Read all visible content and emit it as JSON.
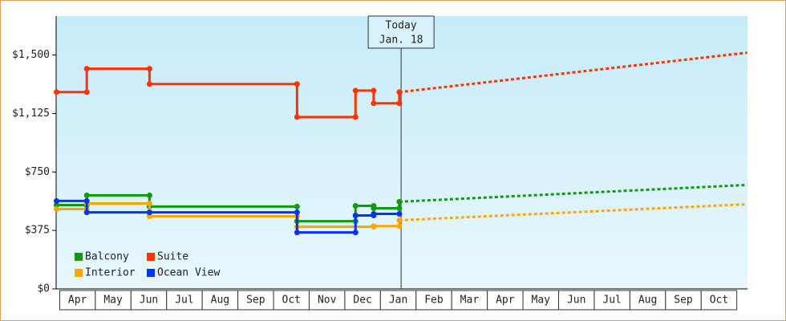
{
  "chart_data": {
    "type": "line",
    "xlim": [
      -0.1,
      19.3
    ],
    "ylim": [
      0,
      1750
    ],
    "yticks": [
      {
        "value": 0,
        "label": "$0"
      },
      {
        "value": 375,
        "label": "$375"
      },
      {
        "value": 750,
        "label": "$750"
      },
      {
        "value": 1125,
        "label": "$1,125"
      },
      {
        "value": 1500,
        "label": "$1,500"
      }
    ],
    "xticks": [
      {
        "value": 0.5,
        "label": "Apr"
      },
      {
        "value": 1.5,
        "label": "May"
      },
      {
        "value": 2.5,
        "label": "Jun"
      },
      {
        "value": 3.5,
        "label": "Jul"
      },
      {
        "value": 4.5,
        "label": "Aug"
      },
      {
        "value": 5.5,
        "label": "Sep"
      },
      {
        "value": 6.5,
        "label": "Oct"
      },
      {
        "value": 7.5,
        "label": "Nov"
      },
      {
        "value": 8.5,
        "label": "Dec"
      },
      {
        "value": 9.5,
        "label": "Jan"
      },
      {
        "value": 10.5,
        "label": "Feb"
      },
      {
        "value": 11.5,
        "label": "Mar"
      },
      {
        "value": 12.5,
        "label": "Apr"
      },
      {
        "value": 13.5,
        "label": "May"
      },
      {
        "value": 14.5,
        "label": "Jun"
      },
      {
        "value": 15.5,
        "label": "Jul"
      },
      {
        "value": 16.5,
        "label": "Aug"
      },
      {
        "value": 17.5,
        "label": "Sep"
      },
      {
        "value": 18.5,
        "label": "Oct"
      }
    ],
    "today": {
      "x": 9.58,
      "label": [
        "Today",
        "Jan. 18"
      ]
    },
    "series": [
      {
        "name": "Balcony",
        "color": "#119911",
        "x": [
          -0.09,
          0.76,
          0.76,
          2.52,
          2.52,
          6.66,
          6.66,
          8.3,
          8.3,
          8.81,
          8.81,
          9.53,
          9.53
        ],
        "values": [
          538,
          538,
          600,
          600,
          528,
          528,
          434,
          434,
          533,
          533,
          517,
          517,
          559
        ],
        "forecast": {
          "x": [
            9.53,
            19.29
          ],
          "values": [
            559,
            667
          ]
        }
      },
      {
        "name": "Suite",
        "color": "#ff3300",
        "x": [
          -0.09,
          0.76,
          0.76,
          2.52,
          2.52,
          6.66,
          6.66,
          8.3,
          8.3,
          8.81,
          8.81,
          9.53,
          9.53
        ],
        "values": [
          1262,
          1262,
          1412,
          1412,
          1314,
          1314,
          1102,
          1102,
          1272,
          1272,
          1190,
          1190,
          1262
        ],
        "forecast": {
          "x": [
            9.53,
            19.29
          ],
          "values": [
            1262,
            1515
          ]
        }
      },
      {
        "name": "Interior",
        "color": "#ffa500",
        "x": [
          -0.09,
          0.76,
          0.76,
          2.52,
          2.52,
          6.66,
          6.66,
          8.81,
          8.81,
          9.53,
          9.53
        ],
        "values": [
          512,
          512,
          548,
          548,
          466,
          466,
          398,
          398,
          403,
          403,
          440
        ],
        "forecast": {
          "x": [
            9.53,
            19.29
          ],
          "values": [
            440,
            543
          ]
        }
      },
      {
        "name": "Ocean View",
        "color": "#0033ff",
        "x": [
          -0.09,
          0.76,
          0.76,
          2.52,
          2.52,
          6.66,
          6.66,
          8.3,
          8.3,
          8.81,
          8.81,
          9.53
        ],
        "values": [
          564,
          564,
          491,
          491,
          491,
          491,
          362,
          362,
          471,
          471,
          481,
          481
        ]
      }
    ]
  }
}
